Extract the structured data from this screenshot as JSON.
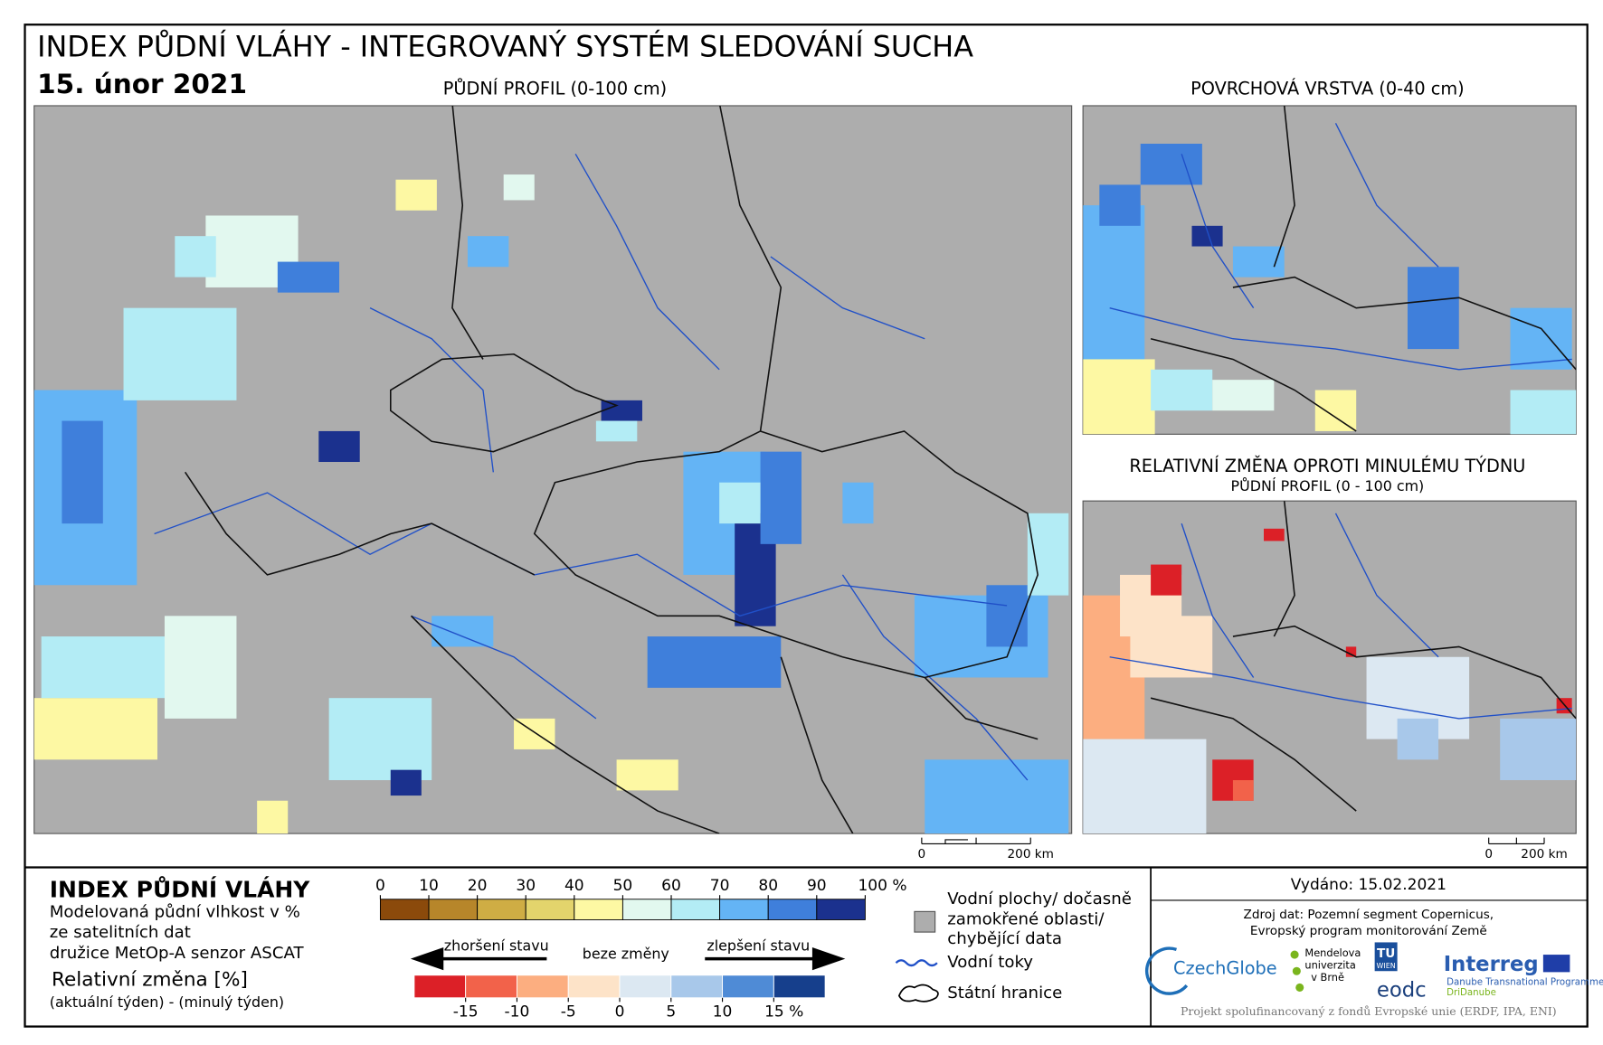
{
  "header": {
    "title": "INDEX PŮDNÍ VLÁHY - INTEGROVANÝ SYSTÉM SLEDOVÁNÍ SUCHA",
    "date": "15. únor 2021"
  },
  "maps": {
    "main": {
      "title": "PŮDNÍ PROFIL (0-100 cm)",
      "scale_start": "0",
      "scale_end": "200 km"
    },
    "surface": {
      "title": "POVRCHOVÁ VRSTVA (0-40 cm)"
    },
    "change": {
      "title": "RELATIVNÍ ZMĚNA OPROTI MINULÉMU TÝDNU",
      "subtitle": "PŮDNÍ PROFIL (0 - 100 cm)",
      "scale_start": "0",
      "scale_end": "200 km"
    }
  },
  "legend": {
    "title": "INDEX PŮDNÍ VLÁHY",
    "description": [
      "Modelovaná půdní vlhkost v %",
      "ze satelitních dat",
      "družice MetOp-A senzor ASCAT"
    ],
    "change_title": "Relativní změna [%]",
    "change_description": "(aktuální týden) - (minulý týden)",
    "moisture_ticks": [
      0,
      10,
      20,
      30,
      40,
      50,
      60,
      70,
      80,
      90,
      {
        "value": 100,
        "label": "100 %"
      }
    ],
    "moisture_colors": [
      "#8b4a0b",
      "#b7862a",
      "#cfad44",
      "#e3d46c",
      "#fdf8a3",
      "#e2f8ef",
      "#b3ecf5",
      "#64b4f5",
      "#3f7fdb",
      "#1b318e"
    ],
    "worse": "zhoršení stavu",
    "no_change": "beze změny",
    "better": "zlepšení stavu",
    "change_ticks": [
      -15,
      -10,
      -5,
      0,
      5,
      10,
      {
        "value": 15,
        "label": "15 %"
      }
    ],
    "change_colors": [
      "#dc2027",
      "#f2624a",
      "#fcae80",
      "#fde3c8",
      "#dce8f2",
      "#a8c8ea",
      "#4f8bd6",
      "#163f8c"
    ],
    "water_bodies": [
      "Vodní plochy/ dočasně",
      "zamokřené oblasti/",
      "chybějící data"
    ],
    "rivers": "Vodní toky",
    "borders": "Státní hranice"
  },
  "info": {
    "issued": "Vydáno: 15.02.2021",
    "source": [
      "Zdroj dat: Pozemní segment Copernicus,",
      "Evropský program monitorování Země"
    ],
    "logos": {
      "czechglobe": "CzechGlobe",
      "mendel": [
        "Mendelova",
        "univerzita",
        "v Brně"
      ],
      "tuwien": [
        "TU",
        "WIEN"
      ],
      "eodc": "eodc",
      "interreg": "Interreg",
      "danube": "Danube Transnational Programme",
      "dridanube": "DriDanube"
    },
    "footer": "Projekt spolufinancovaný z fondů Evropské unie (ERDF, IPA, ENI)"
  }
}
